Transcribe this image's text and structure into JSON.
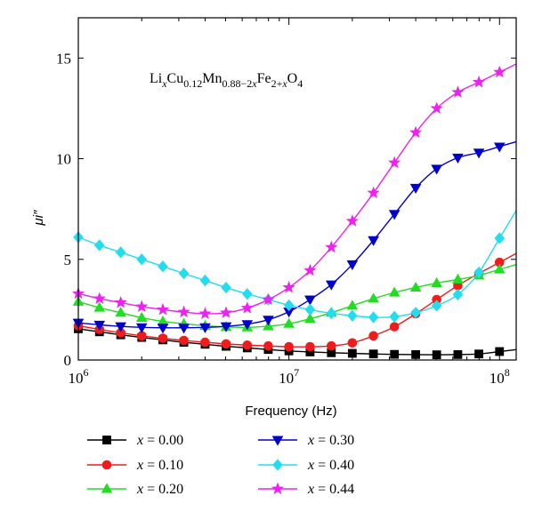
{
  "chart_data": {
    "type": "line",
    "x_scale": "log",
    "xlim": [
      1000000,
      120000000
    ],
    "ylim": [
      0,
      17
    ],
    "grid": false,
    "legend_position": "bottom",
    "xlabel": "Frequency (Hz)",
    "ylabel": "μi″",
    "annotation": "LixCu0.12Mn0.88−2xFe2+xO4",
    "x_ticks": [
      {
        "value": 1000000,
        "base": "10",
        "exp": "6"
      },
      {
        "value": 10000000,
        "base": "10",
        "exp": "7"
      },
      {
        "value": 100000000,
        "base": "10",
        "exp": "8"
      }
    ],
    "y_ticks": [
      0,
      5,
      10,
      15
    ],
    "x": [
      1000000,
      1260000,
      1590000,
      2000000,
      2520000,
      3170000,
      4000000,
      5030000,
      6340000,
      7980000,
      10000000,
      12600000,
      15900000,
      20000000,
      25200000,
      31700000,
      40000000,
      50300000,
      63400000,
      79800000,
      100000000
    ],
    "series": [
      {
        "name": "x = 0.00",
        "legend_label": "= 0.00",
        "color": "#000000",
        "marker": "square",
        "values": [
          1.55,
          1.4,
          1.25,
          1.12,
          1.0,
          0.88,
          0.78,
          0.68,
          0.6,
          0.52,
          0.45,
          0.4,
          0.36,
          0.33,
          0.3,
          0.28,
          0.27,
          0.26,
          0.27,
          0.3,
          0.42
        ]
      },
      {
        "name": "x = 0.10",
        "legend_label": "= 0.10",
        "color": "#ee1c1c",
        "marker": "circle",
        "values": [
          1.7,
          1.52,
          1.35,
          1.2,
          1.08,
          0.97,
          0.88,
          0.8,
          0.74,
          0.7,
          0.66,
          0.66,
          0.7,
          0.85,
          1.2,
          1.65,
          2.3,
          3.0,
          3.7,
          4.3,
          4.85
        ]
      },
      {
        "name": "x = 0.20",
        "legend_label": "= 0.20",
        "color": "#22dd22",
        "marker": "triangle-up",
        "values": [
          2.9,
          2.6,
          2.35,
          2.1,
          1.92,
          1.8,
          1.7,
          1.64,
          1.62,
          1.68,
          1.8,
          2.05,
          2.35,
          2.7,
          3.05,
          3.35,
          3.6,
          3.82,
          4.0,
          4.2,
          4.5
        ]
      },
      {
        "name": "x = 0.30",
        "legend_label": "= 0.30",
        "color": "#0000cc",
        "marker": "triangle-down",
        "values": [
          1.85,
          1.75,
          1.67,
          1.62,
          1.6,
          1.6,
          1.62,
          1.67,
          1.78,
          2.0,
          2.4,
          3.0,
          3.75,
          4.75,
          5.95,
          7.25,
          8.55,
          9.5,
          10.05,
          10.3,
          10.6
        ]
      },
      {
        "name": "x = 0.40",
        "legend_label": "= 0.40",
        "color": "#22ddee",
        "marker": "diamond",
        "values": [
          6.1,
          5.7,
          5.35,
          5.0,
          4.65,
          4.3,
          3.95,
          3.6,
          3.28,
          3.0,
          2.72,
          2.5,
          2.32,
          2.2,
          2.12,
          2.15,
          2.35,
          2.7,
          3.25,
          4.35,
          6.05
        ]
      },
      {
        "name": "x = 0.44",
        "legend_label": "= 0.44",
        "color": "#ee22ee",
        "marker": "star",
        "values": [
          3.3,
          3.05,
          2.85,
          2.65,
          2.5,
          2.38,
          2.3,
          2.35,
          2.58,
          3.0,
          3.6,
          4.45,
          5.6,
          6.9,
          8.3,
          9.8,
          11.3,
          12.5,
          13.3,
          13.8,
          14.3
        ]
      }
    ]
  }
}
